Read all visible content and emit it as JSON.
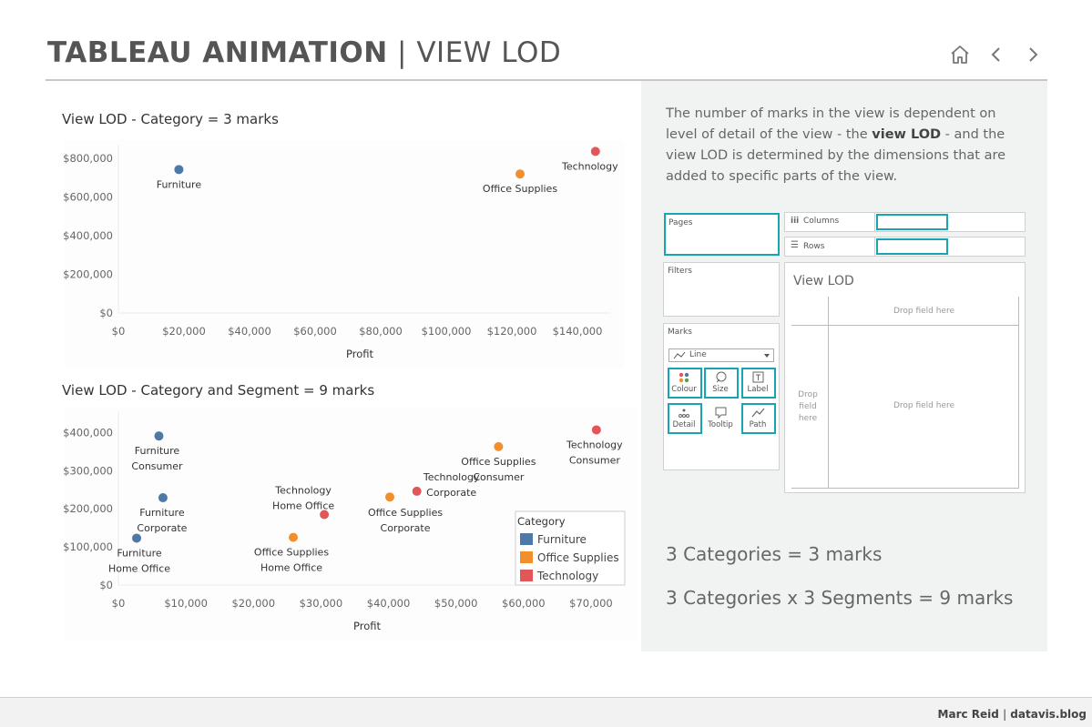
{
  "header": {
    "title_bold": "TABLEAU ANIMATION",
    "title_sep": " | ",
    "title_light": "VIEW LOD",
    "nav": [
      "home-icon",
      "chevron-left-icon",
      "chevron-right-icon"
    ]
  },
  "colors": {
    "Furniture": "#4e79a7",
    "Office Supplies": "#f28e2b",
    "Technology": "#e15759",
    "accent": "#17a5b3",
    "panel_bg": "#f1f2f2"
  },
  "chart_data": [
    {
      "type": "scatter",
      "title": "View LOD - Category = 3 marks",
      "xlabel": "Profit",
      "ylabel": "",
      "xlim": [
        0,
        150000
      ],
      "ylim": [
        0,
        800000
      ],
      "xticks": [
        "$0",
        "$20,000",
        "$40,000",
        "$60,000",
        "$80,000",
        "$100,000",
        "$120,000",
        "$140,000"
      ],
      "xtick_values": [
        0,
        20000,
        40000,
        60000,
        80000,
        100000,
        120000,
        140000
      ],
      "yticks": [
        "$800,000",
        "$600,000",
        "$400,000",
        "$200,000",
        "$0"
      ],
      "ytick_values": [
        800000,
        600000,
        400000,
        200000,
        0
      ],
      "points": [
        {
          "category": "Furniture",
          "label": [
            "Furniture"
          ],
          "x": 18450,
          "y": 742000
        },
        {
          "category": "Office Supplies",
          "label": [
            "Office Supplies"
          ],
          "x": 122500,
          "y": 719000
        },
        {
          "category": "Technology",
          "label": [
            "Technology"
          ],
          "x": 145500,
          "y": 836000
        }
      ]
    },
    {
      "type": "scatter",
      "title": "View LOD - Category and Segment = 9 marks",
      "xlabel": "Profit",
      "ylabel": "",
      "xlim": [
        0,
        75000
      ],
      "ylim": [
        0,
        420000
      ],
      "xticks": [
        "$0",
        "$10,000",
        "$20,000",
        "$30,000",
        "$40,000",
        "$50,000",
        "$60,000",
        "$70,000"
      ],
      "xtick_values": [
        0,
        10000,
        20000,
        30000,
        40000,
        50000,
        60000,
        70000
      ],
      "yticks": [
        "$400,000",
        "$300,000",
        "$200,000",
        "$100,000",
        "$0"
      ],
      "ytick_values": [
        400000,
        300000,
        200000,
        100000,
        0
      ],
      "legend": {
        "title": "Category",
        "items": [
          "Furniture",
          "Office Supplies",
          "Technology"
        ],
        "placement": "bottom-right"
      },
      "points": [
        {
          "category": "Furniture",
          "label": [
            "Furniture",
            "Consumer"
          ],
          "x": 6000,
          "y": 391000
        },
        {
          "category": "Furniture",
          "label": [
            "Furniture",
            "Corporate"
          ],
          "x": 6600,
          "y": 229000
        },
        {
          "category": "Furniture",
          "label": [
            "Furniture",
            "Home Office"
          ],
          "x": 2700,
          "y": 123000
        },
        {
          "category": "Office Supplies",
          "label": [
            "Office Supplies",
            "Consumer"
          ],
          "x": 56300,
          "y": 363000
        },
        {
          "category": "Office Supplies",
          "label": [
            "Office Supplies",
            "Corporate"
          ],
          "x": 40200,
          "y": 231000
        },
        {
          "category": "Office Supplies",
          "label": [
            "Office Supplies",
            "Home Office"
          ],
          "x": 25900,
          "y": 125000
        },
        {
          "category": "Technology",
          "label": [
            "Technology",
            "Consumer"
          ],
          "x": 70800,
          "y": 407000
        },
        {
          "category": "Technology",
          "label": [
            "Technology",
            "Corporate"
          ],
          "x": 44200,
          "y": 246000
        },
        {
          "category": "Technology",
          "label": [
            "Technology",
            "Home Office"
          ],
          "x": 30500,
          "y": 185000
        }
      ]
    }
  ],
  "panel": {
    "description_1": "The number of marks in the view is dependent on level of detail of the view - the ",
    "description_bold": "view LOD",
    "description_2": " - and the view LOD is determined by the dimensions that are added to specific parts of the view.",
    "summary_1": "3 Categories = 3 marks",
    "summary_2": "3 Categories x 3 Segments = 9 marks"
  },
  "tableau_ui": {
    "pages": "Pages",
    "columns": "Columns",
    "rows": "Rows",
    "filters": "Filters",
    "marks": "Marks",
    "mark_type": "Line",
    "view_title": "View LOD",
    "drop_top": "Drop field here",
    "drop_left": "Drop field here",
    "drop_center": "Drop field here",
    "buttons": [
      "Colour",
      "Size",
      "Label",
      "Detail",
      "Tooltip",
      "Path"
    ]
  },
  "footer": {
    "author": "Marc Reid",
    "sep": "|",
    "site": "datavis.blog"
  }
}
